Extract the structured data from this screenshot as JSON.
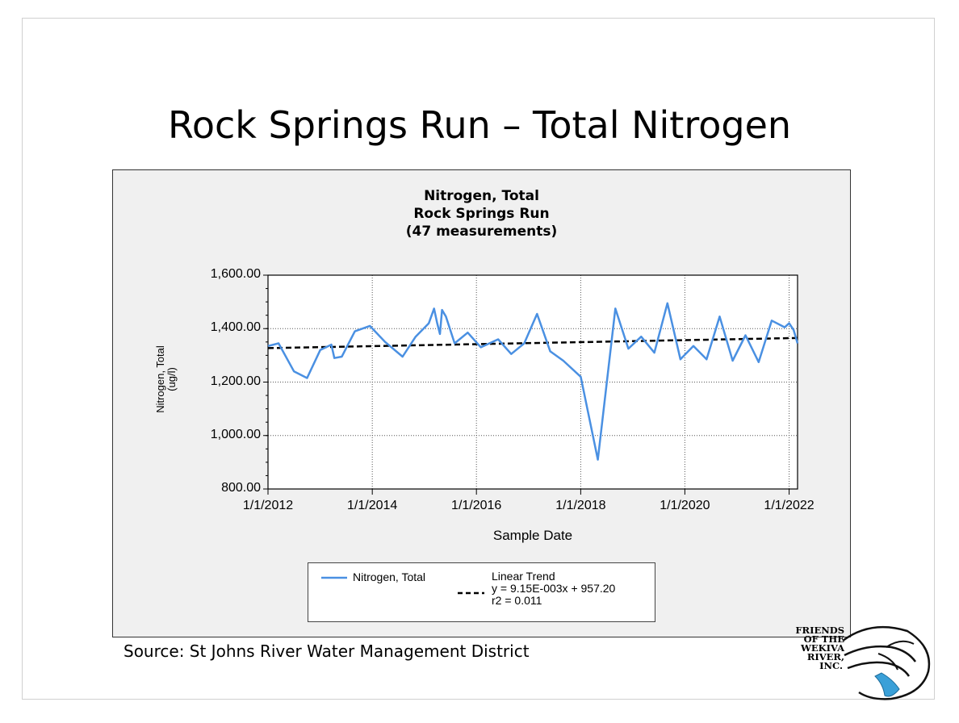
{
  "slide": {
    "title": "Rock Springs Run – Total Nitrogen",
    "source": "Source: St Johns River Water Management District",
    "logo": {
      "lines": [
        "FRIENDS",
        "OF THE",
        "WEKIVA",
        "RIVER,",
        "INC."
      ]
    }
  },
  "chart_data": {
    "type": "line",
    "title": [
      "Nitrogen, Total",
      "Rock Springs Run",
      "(47 measurements)"
    ],
    "xlabel": "Sample Date",
    "ylabel": [
      "Nitrogen, Total",
      "(ug/l)"
    ],
    "ylim": [
      800,
      1600
    ],
    "y_ticks": [
      {
        "value": 800,
        "label": "800.00"
      },
      {
        "value": 1000,
        "label": "1,000.00"
      },
      {
        "value": 1200,
        "label": "1,200.00"
      },
      {
        "value": 1400,
        "label": "1,400.00"
      },
      {
        "value": 1600,
        "label": "1,600.00"
      }
    ],
    "xlim": [
      "2012-01-01",
      "2022-03-01"
    ],
    "x_ticks": [
      {
        "date": "2012-01-01",
        "label": "1/1/2012"
      },
      {
        "date": "2014-01-01",
        "label": "1/1/2014"
      },
      {
        "date": "2016-01-01",
        "label": "1/1/2016"
      },
      {
        "date": "2018-01-01",
        "label": "1/1/2018"
      },
      {
        "date": "2020-01-01",
        "label": "1/1/2020"
      },
      {
        "date": "2022-01-01",
        "label": "1/1/2022"
      }
    ],
    "grid": true,
    "legend_position": "bottom",
    "series": [
      {
        "name": "Nitrogen, Total",
        "color": "#4a90e2",
        "points": [
          {
            "x": "2012-01-01",
            "y": 1335
          },
          {
            "x": "2012-03-15",
            "y": 1345
          },
          {
            "x": "2012-07-01",
            "y": 1240
          },
          {
            "x": "2012-10-01",
            "y": 1215
          },
          {
            "x": "2013-01-01",
            "y": 1320
          },
          {
            "x": "2013-03-20",
            "y": 1340
          },
          {
            "x": "2013-04-10",
            "y": 1290
          },
          {
            "x": "2013-06-01",
            "y": 1295
          },
          {
            "x": "2013-09-01",
            "y": 1390
          },
          {
            "x": "2013-12-15",
            "y": 1410
          },
          {
            "x": "2014-04-01",
            "y": 1350
          },
          {
            "x": "2014-08-01",
            "y": 1295
          },
          {
            "x": "2014-11-01",
            "y": 1370
          },
          {
            "x": "2015-02-01",
            "y": 1420
          },
          {
            "x": "2015-03-10",
            "y": 1475
          },
          {
            "x": "2015-04-01",
            "y": 1420
          },
          {
            "x": "2015-04-20",
            "y": 1380
          },
          {
            "x": "2015-05-05",
            "y": 1470
          },
          {
            "x": "2015-06-01",
            "y": 1445
          },
          {
            "x": "2015-08-01",
            "y": 1345
          },
          {
            "x": "2015-11-01",
            "y": 1385
          },
          {
            "x": "2016-02-01",
            "y": 1330
          },
          {
            "x": "2016-06-01",
            "y": 1360
          },
          {
            "x": "2016-09-01",
            "y": 1305
          },
          {
            "x": "2016-12-01",
            "y": 1345
          },
          {
            "x": "2017-03-01",
            "y": 1455
          },
          {
            "x": "2017-06-01",
            "y": 1315
          },
          {
            "x": "2017-09-01",
            "y": 1280
          },
          {
            "x": "2018-01-01",
            "y": 1220
          },
          {
            "x": "2018-05-01",
            "y": 910
          },
          {
            "x": "2018-09-01",
            "y": 1475
          },
          {
            "x": "2018-12-01",
            "y": 1325
          },
          {
            "x": "2019-03-01",
            "y": 1370
          },
          {
            "x": "2019-06-01",
            "y": 1310
          },
          {
            "x": "2019-09-01",
            "y": 1495
          },
          {
            "x": "2019-12-01",
            "y": 1285
          },
          {
            "x": "2020-03-01",
            "y": 1335
          },
          {
            "x": "2020-06-01",
            "y": 1285
          },
          {
            "x": "2020-09-01",
            "y": 1445
          },
          {
            "x": "2020-12-01",
            "y": 1280
          },
          {
            "x": "2021-03-01",
            "y": 1375
          },
          {
            "x": "2021-06-01",
            "y": 1275
          },
          {
            "x": "2021-09-01",
            "y": 1430
          },
          {
            "x": "2021-12-01",
            "y": 1405
          },
          {
            "x": "2022-01-01",
            "y": 1420
          },
          {
            "x": "2022-02-01",
            "y": 1395
          },
          {
            "x": "2022-03-01",
            "y": 1345
          }
        ]
      }
    ],
    "trend": {
      "name": "Linear Trend",
      "equation": "y = 9.15E-003x + 957.20",
      "r2": "r2 = 0.011",
      "start": {
        "x": "2012-01-01",
        "y": 1327
      },
      "end": {
        "x": "2022-03-01",
        "y": 1365
      },
      "color": "#000000"
    }
  }
}
